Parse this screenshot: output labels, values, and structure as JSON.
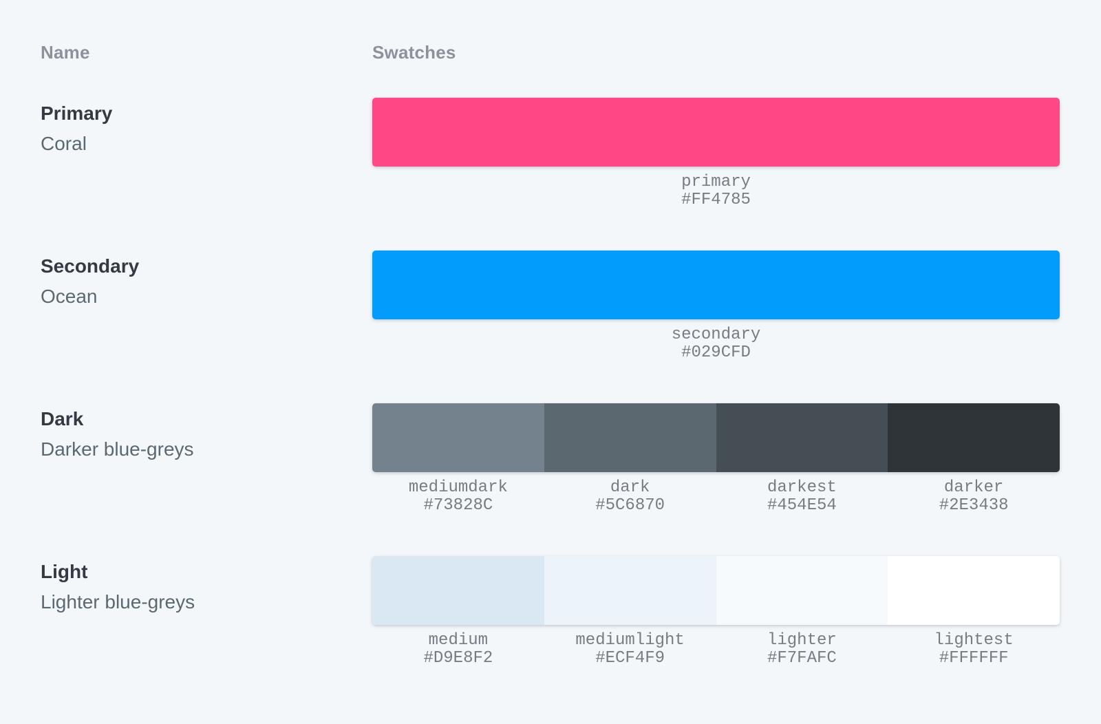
{
  "page": {
    "background": "#F4F7FA"
  },
  "table": {
    "name_header": "Name",
    "swatches_header": "Swatches",
    "rows": [
      {
        "title": "Primary",
        "subtitle": "Coral",
        "swatches": [
          {
            "name": "primary",
            "value": "#FF4785"
          }
        ]
      },
      {
        "title": "Secondary",
        "subtitle": "Ocean",
        "swatches": [
          {
            "name": "secondary",
            "value": "#029CFD"
          }
        ]
      },
      {
        "title": "Dark",
        "subtitle": "Darker blue-greys",
        "swatches": [
          {
            "name": "mediumdark",
            "value": "#73828C"
          },
          {
            "name": "dark",
            "value": "#5C6870"
          },
          {
            "name": "darkest",
            "value": "#454E54"
          },
          {
            "name": "darker",
            "value": "#2E3438"
          }
        ]
      },
      {
        "title": "Light",
        "subtitle": "Lighter blue-greys",
        "swatches": [
          {
            "name": "medium",
            "value": "#D9E8F2"
          },
          {
            "name": "mediumlight",
            "value": "#ECF4F9"
          },
          {
            "name": "lighter",
            "value": "#F7FAFC"
          },
          {
            "name": "lightest",
            "value": "#FFFFFF"
          }
        ]
      }
    ]
  }
}
